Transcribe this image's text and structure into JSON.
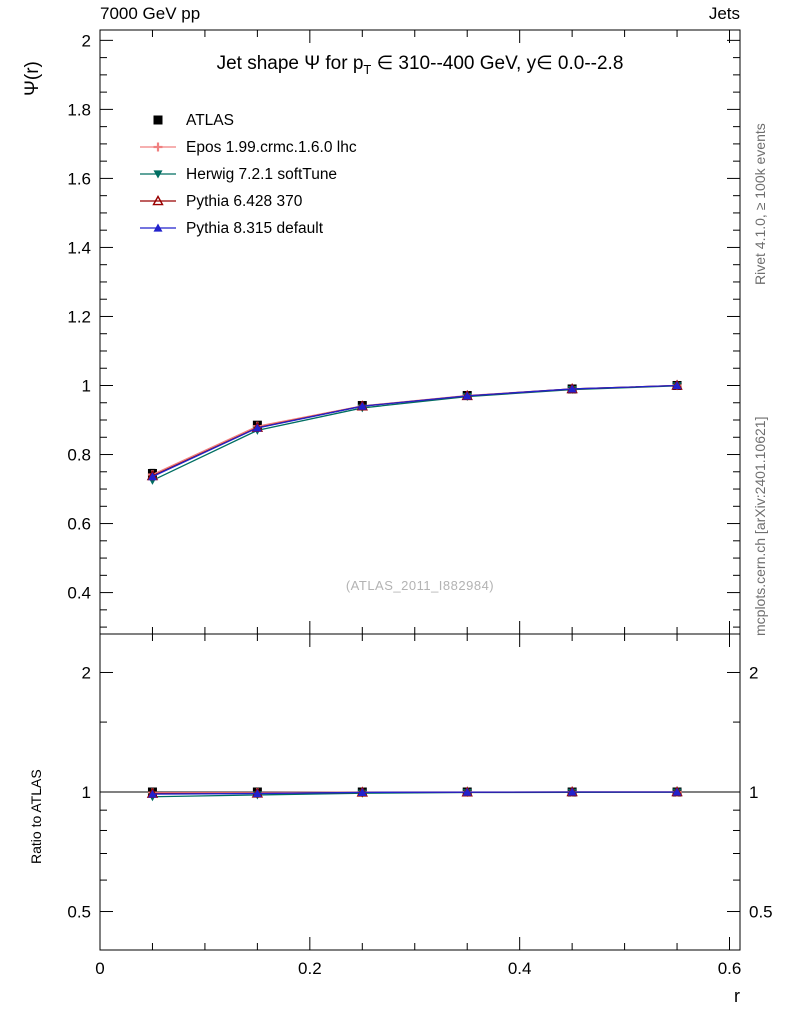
{
  "header": {
    "left": "7000 GeV pp",
    "right": "Jets"
  },
  "right_margin": {
    "rivet": "Rivet 4.1.0, ≥ 100k events",
    "mcplots": "mcplots.cern.ch [arXiv:2401.10621]"
  },
  "watermark": "(ATLAS_2011_I882984)",
  "title_parts": {
    "pre": "Jet shape Ψ for p",
    "sub": "T",
    "post": " ∈ 310--400 GeV, y∈ 0.0--2.8"
  },
  "chart_data": [
    {
      "name": "main",
      "type": "line",
      "title": "Jet shape Ψ for p_T ∈ 310--400 GeV, y∈ 0.0--2.8",
      "xlabel": "r",
      "ylabel": "Ψ(r)",
      "xlim": [
        0,
        0.61
      ],
      "ylim": [
        0.28,
        2.03
      ],
      "xticks": [
        0,
        0.2,
        0.4,
        0.6
      ],
      "yticks": [
        0.4,
        0.6,
        0.8,
        1,
        1.2,
        1.4,
        1.6,
        1.8,
        2
      ],
      "ytick_labels": [
        "0.4",
        "0.6",
        "0.8",
        "1",
        "1.2",
        "1.4",
        "1.6",
        "1.8",
        "2"
      ],
      "ylabels_left": true,
      "yminor_step": 0.05,
      "xminor_step": 0.05,
      "legend": true,
      "grid": false,
      "x": [
        0.05,
        0.15,
        0.25,
        0.35,
        0.45,
        0.55
      ],
      "series": [
        {
          "name": "ATLAS",
          "color": "#000000",
          "marker": "square-filled",
          "line": false,
          "values": [
            0.745,
            0.885,
            0.942,
            0.971,
            0.99,
            1.0
          ],
          "err": [
            0.012,
            0.01,
            0.006,
            0.004,
            0.003,
            0.002
          ]
        },
        {
          "name": "Epos 1.99.crmc.1.6.0 lhc",
          "color": "#f08080",
          "marker": "plus-open",
          "values": [
            0.742,
            0.882,
            0.941,
            0.971,
            0.99,
            1.0
          ]
        },
        {
          "name": "Herwig 7.2.1 softTune",
          "color": "#006e62",
          "marker": "triangle-down-filled",
          "values": [
            0.725,
            0.87,
            0.935,
            0.968,
            0.988,
            0.999
          ]
        },
        {
          "name": "Pythia 6.428 370",
          "color": "#990000",
          "marker": "triangle-up-open",
          "values": [
            0.738,
            0.878,
            0.94,
            0.97,
            0.99,
            1.0
          ]
        },
        {
          "name": "Pythia 8.315 default",
          "color": "#2222cc",
          "marker": "triangle-up-filled",
          "values": [
            0.736,
            0.877,
            0.94,
            0.97,
            0.99,
            1.0
          ]
        }
      ]
    },
    {
      "name": "ratio",
      "type": "line",
      "title": "",
      "xlabel": "r",
      "ylabel": "Ratio to ATLAS",
      "yscale": "log",
      "xlim": [
        0,
        0.61
      ],
      "ylim": [
        0.4,
        2.5
      ],
      "xticks": [
        0,
        0.2,
        0.4,
        0.6
      ],
      "xtick_labels": [
        "0",
        "0.2",
        "0.4",
        "0.6"
      ],
      "yticks": [
        0.5,
        1,
        2
      ],
      "ytick_labels": [
        "0.5",
        "1",
        "2"
      ],
      "ylabels_left": true,
      "ylabels_right": true,
      "yminor": [
        0.4,
        0.6,
        0.7,
        0.8,
        0.9,
        1.5
      ],
      "xminor_step": 0.05,
      "refline_y": 1,
      "grid": false,
      "x": [
        0.05,
        0.15,
        0.25,
        0.35,
        0.45,
        0.55
      ],
      "series": [
        {
          "name": "ATLAS",
          "color": "#000000",
          "marker": "square-filled",
          "line": false,
          "values": [
            1,
            1,
            1,
            1,
            1,
            1
          ]
        },
        {
          "name": "Epos 1.99.crmc.1.6.0 lhc",
          "color": "#f08080",
          "marker": "plus-open",
          "values": [
            0.996,
            0.997,
            0.999,
            1.0,
            1.0,
            1.0
          ]
        },
        {
          "name": "Herwig 7.2.1 softTune",
          "color": "#006e62",
          "marker": "triangle-down-filled",
          "values": [
            0.973,
            0.983,
            0.993,
            0.997,
            0.998,
            0.999
          ]
        },
        {
          "name": "Pythia 6.428 370",
          "color": "#990000",
          "marker": "triangle-up-open",
          "values": [
            0.991,
            0.992,
            0.998,
            0.999,
            1.0,
            1.0
          ]
        },
        {
          "name": "Pythia 8.315 default",
          "color": "#2222cc",
          "marker": "triangle-up-filled",
          "values": [
            0.988,
            0.991,
            0.998,
            0.999,
            1.0,
            1.0
          ]
        }
      ]
    }
  ]
}
